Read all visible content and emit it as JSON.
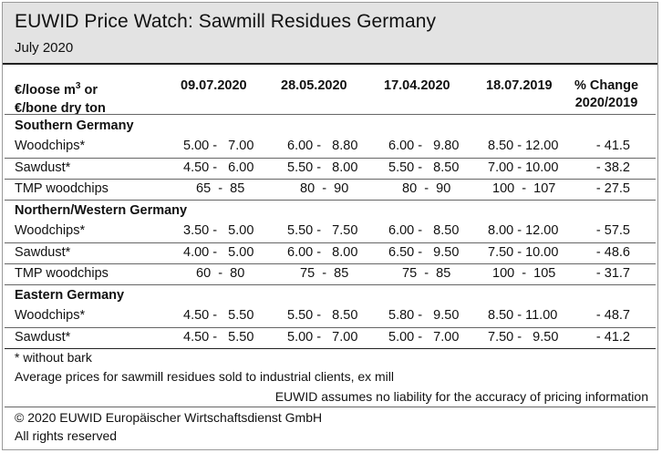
{
  "header": {
    "title": "EUWID Price Watch: Sawmill Residues Germany",
    "subtitle": "July 2020"
  },
  "columns": {
    "unit_line1": "€/loose m",
    "unit_sup": "3",
    "unit_line1_end": " or",
    "unit_line2": "€/bone dry ton",
    "dates": [
      "09.07.2020",
      "28.05.2020",
      "17.04.2020",
      "18.07.2019"
    ],
    "change_line1": "% Change",
    "change_line2": "2020/2019"
  },
  "sections": [
    {
      "name": "Southern Germany",
      "rows": [
        {
          "label": "Woodchips*",
          "values": [
            "5.00 -   7.00",
            "6.00 -   8.80",
            "6.00 -   9.80",
            "8.50 - 12.00"
          ],
          "change": "- 41.5"
        },
        {
          "label": "Sawdust*",
          "values": [
            "4.50 -   6.00",
            "5.50 -   8.00",
            "5.50 -   8.50",
            "7.00 - 10.00"
          ],
          "change": "- 38.2"
        },
        {
          "label": "TMP woodchips",
          "values": [
            "  65  -  85",
            "  80  -  90",
            "  80  -  90",
            "100  -  107"
          ],
          "change": "- 27.5"
        }
      ]
    },
    {
      "name": "Northern/Western Germany",
      "rows": [
        {
          "label": "Woodchips*",
          "values": [
            "3.50 -   5.00",
            "5.50 -   7.50",
            "6.00 -   8.50",
            "8.00 - 12.00"
          ],
          "change": "- 57.5"
        },
        {
          "label": "Sawdust*",
          "values": [
            "4.00 -   5.00",
            "6.00 -   8.00",
            "6.50 -   9.50",
            "7.50 - 10.00"
          ],
          "change": "- 48.6"
        },
        {
          "label": "TMP woodchips",
          "values": [
            "  60  -  80",
            "  75  -  85",
            "  75  -  85",
            "100  -  105"
          ],
          "change": "- 31.7"
        }
      ]
    },
    {
      "name": "Eastern Germany",
      "rows": [
        {
          "label": "Woodchips*",
          "values": [
            "4.50 -   5.50",
            "5.50 -   8.50",
            "5.80 -   9.50",
            "8.50 - 11.00"
          ],
          "change": "- 48.7"
        },
        {
          "label": "Sawdust*",
          "values": [
            "4.50 -   5.50",
            "5.00 -   7.00",
            "5.00 -   7.00",
            "7.50 -   9.50"
          ],
          "change": "- 41.2"
        }
      ]
    }
  ],
  "footer": {
    "note": "* without bark",
    "description": "Average prices for sawmill residues sold to industrial clients, ex mill",
    "liability": "EUWID assumes no liability for the accuracy of pricing information",
    "copyright": "© 2020 EUWID Europäischer Wirtschaftsdienst GmbH",
    "rights": "All rights reserved"
  }
}
